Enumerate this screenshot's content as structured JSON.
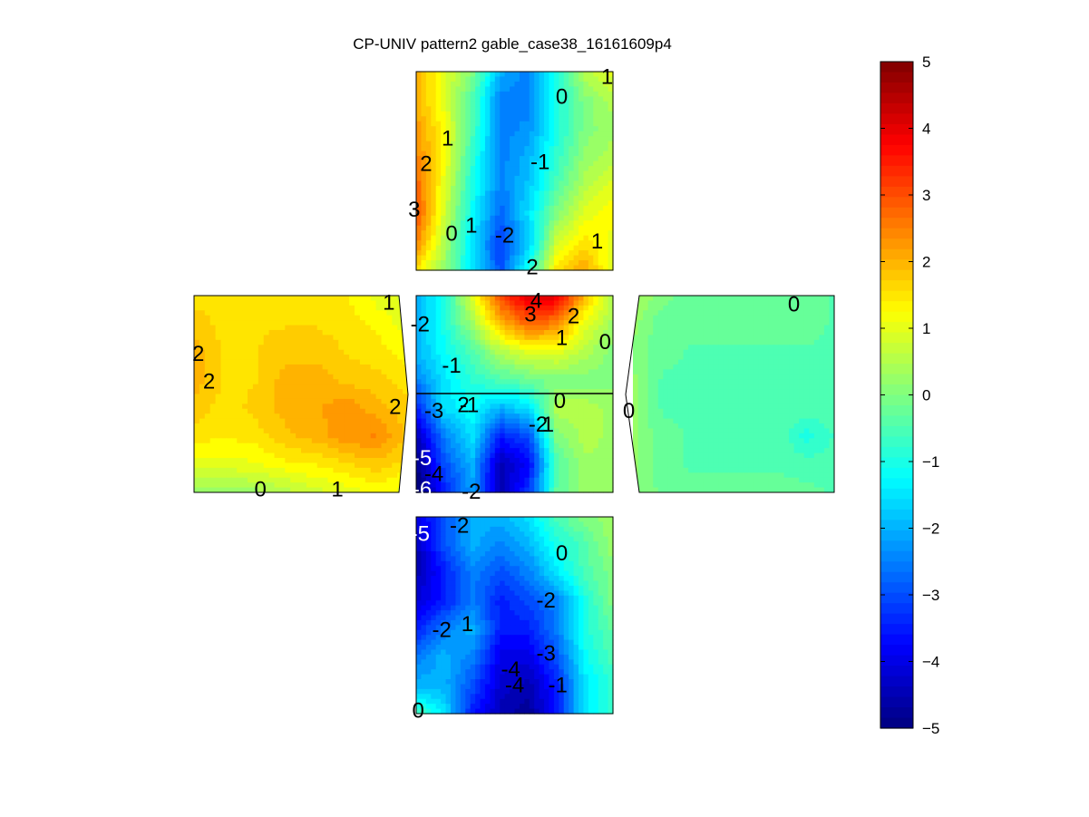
{
  "chart_data": {
    "type": "heatmap",
    "title": "CP-UNIV pattern2 gable_case38_16161609p4",
    "colormap": "jet",
    "colorbar": {
      "range": [
        -5,
        5
      ],
      "ticks": [
        5,
        4,
        3,
        2,
        1,
        0,
        -1,
        -2,
        -3,
        -4,
        -5
      ]
    },
    "panels": [
      {
        "face": "top",
        "contour_labels": [
          "1",
          "0",
          "1",
          "-1",
          "2",
          "3",
          "0",
          "1",
          "-2",
          "1",
          "2"
        ],
        "grid": [
          [
            2.0,
            1.0,
            0.0,
            -2.0,
            -2.5,
            -1.0,
            0.5,
            1.0
          ],
          [
            2.0,
            1.0,
            -0.5,
            -2.5,
            -2.5,
            -1.0,
            0.0,
            0.5
          ],
          [
            2.3,
            1.2,
            -0.5,
            -2.5,
            -2.3,
            -1.0,
            0.0,
            0.3
          ],
          [
            2.5,
            1.2,
            -0.8,
            -2.5,
            -2.0,
            -0.8,
            0.2,
            0.5
          ],
          [
            2.8,
            1.0,
            -1.0,
            -2.5,
            -1.8,
            -0.5,
            0.5,
            1.0
          ],
          [
            3.0,
            0.8,
            -1.2,
            -2.8,
            -1.5,
            0.0,
            1.0,
            1.3
          ],
          [
            2.5,
            0.5,
            -1.5,
            -3.2,
            -1.8,
            0.8,
            1.5,
            1.0
          ],
          [
            1.5,
            0.2,
            -1.5,
            -3.0,
            -1.0,
            1.5,
            2.2,
            0.8
          ]
        ]
      },
      {
        "face": "left",
        "contour_labels": [
          "1",
          "2",
          "2",
          "2",
          "0",
          "1"
        ],
        "grid": [
          [
            1.5,
            1.5,
            1.5,
            1.6,
            1.5,
            1.4,
            1.0,
            0.8
          ],
          [
            1.8,
            1.5,
            1.6,
            1.6,
            1.6,
            1.5,
            1.3,
            1.0
          ],
          [
            2.0,
            1.6,
            1.6,
            1.8,
            1.8,
            1.6,
            1.5,
            1.2
          ],
          [
            2.0,
            1.6,
            1.6,
            2.0,
            2.0,
            1.8,
            1.7,
            1.5
          ],
          [
            1.8,
            1.5,
            1.7,
            2.0,
            2.1,
            2.3,
            2.0,
            1.7
          ],
          [
            1.5,
            1.4,
            1.5,
            1.8,
            2.0,
            2.3,
            2.4,
            1.8
          ],
          [
            1.0,
            1.0,
            1.1,
            1.3,
            1.4,
            1.6,
            1.8,
            1.5
          ],
          [
            0.3,
            0.2,
            0.3,
            0.5,
            0.8,
            1.0,
            1.2,
            1.0
          ]
        ]
      },
      {
        "face": "middle",
        "contour_labels": [
          "-2",
          "4",
          "3",
          "2",
          "1",
          "0",
          "-1",
          "2",
          "-3",
          "-1",
          "0",
          "-2",
          "1",
          "-5",
          "-4",
          "-6",
          "-2"
        ],
        "grid": [
          [
            -2.0,
            -1.0,
            1.0,
            3.0,
            4.2,
            4.0,
            2.0,
            0.5
          ],
          [
            -2.0,
            -1.0,
            0.3,
            2.0,
            2.8,
            2.5,
            1.0,
            0.3
          ],
          [
            -2.0,
            -1.2,
            -0.5,
            0.5,
            1.0,
            1.0,
            0.5,
            0.0
          ],
          [
            -2.5,
            -1.5,
            -0.8,
            -0.5,
            -0.2,
            0.0,
            0.0,
            0.0
          ],
          [
            -3.5,
            -1.5,
            -1.2,
            -2.0,
            -1.5,
            0.5,
            0.5,
            0.3
          ],
          [
            -4.5,
            -2.5,
            -1.5,
            -3.5,
            -3.0,
            0.0,
            0.5,
            0.3
          ],
          [
            -5.0,
            -3.0,
            -2.0,
            -4.5,
            -3.8,
            -0.5,
            0.3,
            0.3
          ],
          [
            -5.2,
            -3.5,
            -2.2,
            -4.5,
            -3.2,
            -0.3,
            0.2,
            0.2
          ]
        ]
      },
      {
        "face": "right",
        "contour_labels": [
          "0",
          "0"
        ],
        "grid": [
          [
            0.5,
            0.0,
            -0.3,
            -0.3,
            -0.3,
            -0.3,
            -0.3,
            -0.4
          ],
          [
            0.2,
            -0.3,
            -0.3,
            -0.3,
            -0.3,
            -0.3,
            -0.3,
            -0.4
          ],
          [
            0.1,
            -0.3,
            -0.4,
            -0.4,
            -0.4,
            -0.4,
            -0.4,
            -0.4
          ],
          [
            0.2,
            -0.4,
            -0.4,
            -0.4,
            -0.4,
            -0.4,
            -0.4,
            -0.4
          ],
          [
            0.2,
            -0.4,
            -0.4,
            -0.4,
            -0.4,
            -0.4,
            -0.4,
            -0.5
          ],
          [
            0.2,
            -0.3,
            -0.4,
            -0.4,
            -0.4,
            -0.4,
            -1.0,
            -0.6
          ],
          [
            0.2,
            -0.3,
            -0.4,
            -0.4,
            -0.4,
            -0.4,
            -0.5,
            -0.5
          ],
          [
            0.2,
            -0.2,
            -0.3,
            -0.3,
            -0.3,
            -0.3,
            -0.3,
            -0.4
          ]
        ]
      },
      {
        "face": "bottom",
        "contour_labels": [
          "-2",
          "-5",
          "0",
          "-2",
          "-2",
          "1",
          "-3",
          "-4",
          "-4",
          "-1",
          "0"
        ],
        "grid": [
          [
            -4.0,
            -3.0,
            -2.0,
            -2.0,
            -1.5,
            -0.5,
            0.0,
            0.3
          ],
          [
            -4.5,
            -3.0,
            -2.0,
            -2.5,
            -2.0,
            -1.0,
            -0.5,
            0.3
          ],
          [
            -4.5,
            -3.5,
            -2.5,
            -3.0,
            -2.5,
            -1.5,
            -0.5,
            0.0
          ],
          [
            -4.2,
            -3.5,
            -2.5,
            -3.5,
            -3.0,
            -2.5,
            -1.0,
            0.0
          ],
          [
            -3.5,
            -2.5,
            -2.0,
            -3.5,
            -3.5,
            -2.5,
            -1.0,
            -0.3
          ],
          [
            -2.5,
            -2.0,
            -2.5,
            -4.0,
            -4.0,
            -3.0,
            -1.2,
            -0.5
          ],
          [
            -2.0,
            -2.0,
            -3.0,
            -4.2,
            -4.5,
            -3.5,
            -1.5,
            -0.8
          ],
          [
            -0.5,
            -1.5,
            -3.5,
            -4.5,
            -4.8,
            -3.5,
            -1.5,
            -0.8
          ]
        ]
      }
    ]
  }
}
